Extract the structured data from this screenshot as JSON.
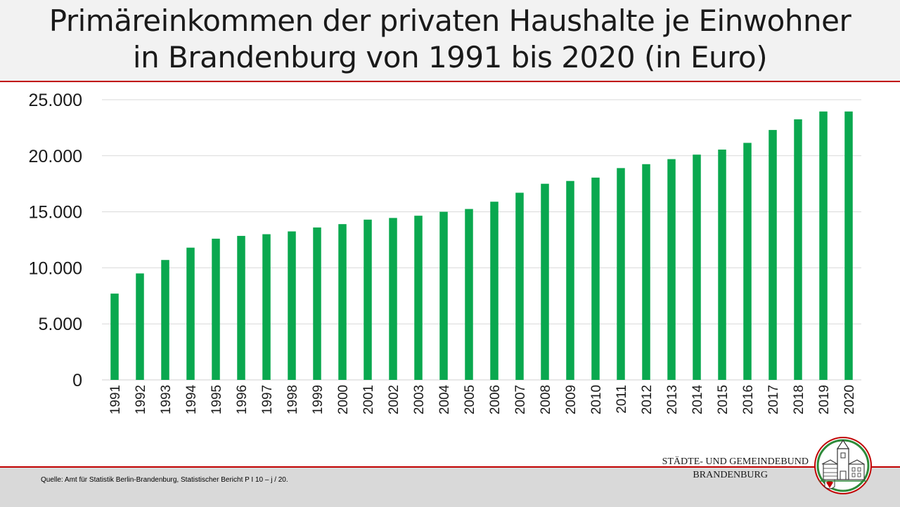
{
  "header": {
    "title_line1": "Primäreinkommen der privaten Haushalte je Einwohner",
    "title_line2": "in Brandenburg von 1991 bis 2020 (in Euro)"
  },
  "footer": {
    "source": "Quelle: Amt  für Statistik Berlin-Brandenburg, Statistischer Bericht P I 10 – j / 20.",
    "org_line1": "STÄDTE-  UND GEMEINDEBUND",
    "org_line2": "BRANDENBURG"
  },
  "colors": {
    "bar": "#0aa84f",
    "accent": "#c00000",
    "grid": "#d9d9d9"
  },
  "chart_data": {
    "type": "bar",
    "categories": [
      "1991",
      "1992",
      "1993",
      "1994",
      "1995",
      "1996",
      "1997",
      "1998",
      "1999",
      "2000",
      "2001",
      "2002",
      "2003",
      "2004",
      "2005",
      "2006",
      "2007",
      "2008",
      "2009",
      "2010",
      "2011",
      "2012",
      "2013",
      "2014",
      "2015",
      "2016",
      "2017",
      "2018",
      "2019",
      "2020"
    ],
    "values": [
      7700,
      9500,
      10700,
      11800,
      12600,
      12850,
      13000,
      13250,
      13600,
      13900,
      14300,
      14450,
      14650,
      15000,
      15250,
      15900,
      16700,
      17500,
      17750,
      18050,
      18900,
      19250,
      19700,
      20100,
      20550,
      21150,
      22300,
      23250,
      23950,
      23950
    ],
    "ylim": [
      0,
      25000
    ],
    "yticks": [
      0,
      5000,
      10000,
      15000,
      20000,
      25000
    ],
    "ytick_labels": [
      "0",
      "5.000",
      "10.000",
      "15.000",
      "20.000",
      "25.000"
    ],
    "grid": true,
    "legend": "none"
  }
}
